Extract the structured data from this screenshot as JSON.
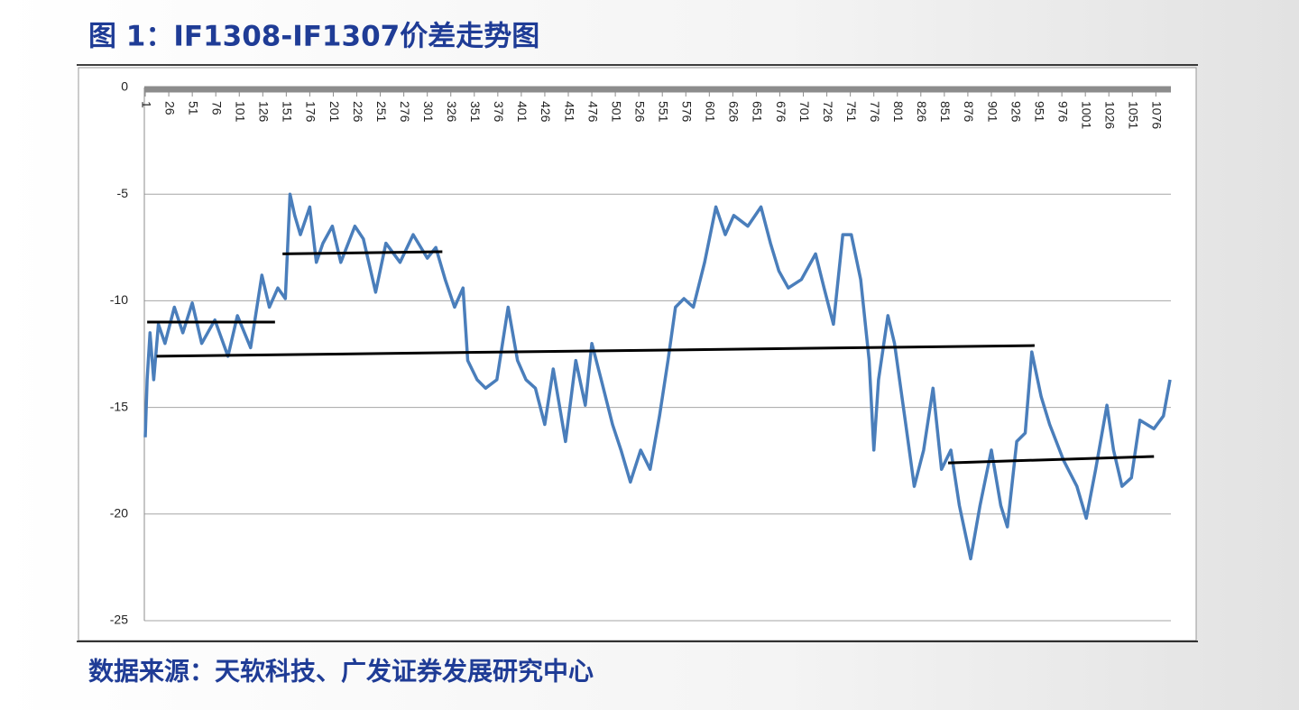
{
  "chart_data": {
    "type": "line",
    "title": "图 1：IF1308-IF1307价差走势图",
    "source": "数据来源：天软科技、广发证券发展研究中心",
    "xlim": [
      0,
      1092
    ],
    "xticks": [
      1,
      26,
      51,
      76,
      101,
      126,
      151,
      176,
      201,
      226,
      251,
      276,
      301,
      326,
      351,
      376,
      401,
      426,
      451,
      476,
      501,
      526,
      551,
      576,
      601,
      626,
      651,
      676,
      701,
      726,
      751,
      776,
      801,
      826,
      851,
      876,
      901,
      926,
      951,
      976,
      1001,
      1026,
      1051,
      1076
    ],
    "ylim": [
      -25,
      0
    ],
    "yticks": [
      0,
      -5,
      -10,
      -15,
      -20,
      -25
    ],
    "grid": true,
    "series": [
      {
        "color": "#4a7ebb",
        "x": [
          1,
          3,
          6,
          10,
          15,
          22,
          32,
          41,
          51,
          61,
          75,
          89,
          99,
          113,
          125,
          133,
          142,
          150,
          155,
          160,
          166,
          176,
          183,
          190,
          200,
          209,
          224,
          233,
          246,
          257,
          272,
          286,
          301,
          310,
          320,
          330,
          339,
          344,
          354,
          363,
          375,
          387,
          397,
          406,
          416,
          426,
          435,
          448,
          459,
          469,
          476,
          486,
          498,
          507,
          517,
          528,
          538,
          548,
          557,
          565,
          574,
          584,
          596,
          608,
          618,
          627,
          642,
          656,
          666,
          675,
          685,
          699,
          714,
          723,
          733,
          743,
          752,
          762,
          771,
          776,
          781,
          791,
          798,
          810,
          819,
          829,
          839,
          848,
          858,
          867,
          879,
          889,
          901,
          911,
          918,
          928,
          937,
          944,
          954,
          963,
          978,
          992,
          1002,
          1012,
          1024,
          1031,
          1040,
          1050,
          1059,
          1074,
          1084,
          1091
        ],
        "values": [
          -16.4,
          -13.7,
          -11.5,
          -13.7,
          -11.1,
          -12,
          -10.3,
          -11.5,
          -10.1,
          -12,
          -10.9,
          -12.6,
          -10.7,
          -12.2,
          -8.8,
          -10.3,
          -9.4,
          -9.9,
          -5.0,
          -6.0,
          -6.9,
          -5.6,
          -8.2,
          -7.3,
          -6.5,
          -8.2,
          -6.5,
          -7.1,
          -9.6,
          -7.3,
          -8.2,
          -6.9,
          -8.0,
          -7.5,
          -9.0,
          -10.3,
          -9.4,
          -12.8,
          -13.7,
          -14.1,
          -13.7,
          -10.3,
          -12.8,
          -13.7,
          -14.1,
          -15.8,
          -13.2,
          -16.6,
          -12.8,
          -14.9,
          -12.0,
          -13.7,
          -15.8,
          -17.0,
          -18.5,
          -17.0,
          -17.9,
          -15.4,
          -12.8,
          -10.3,
          -9.9,
          -10.3,
          -8.2,
          -5.6,
          -6.9,
          -6.0,
          -6.5,
          -5.6,
          -7.3,
          -8.6,
          -9.4,
          -9.0,
          -7.8,
          -9.4,
          -11.1,
          -6.9,
          -6.9,
          -9.0,
          -12.8,
          -17.0,
          -13.7,
          -10.7,
          -12.0,
          -15.8,
          -18.7,
          -17.0,
          -14.1,
          -17.9,
          -17.0,
          -19.6,
          -22.1,
          -19.6,
          -17.0,
          -19.6,
          -20.6,
          -16.6,
          -16.2,
          -12.4,
          -14.5,
          -15.8,
          -17.5,
          -18.7,
          -20.2,
          -17.9,
          -14.9,
          -17.0,
          -18.7,
          -18.3,
          -15.6,
          -16.0,
          -15.4,
          -13.7
        ]
      }
    ],
    "trend_lines": [
      {
        "x": [
          3,
          139
        ],
        "y": [
          -11.0,
          -11.0
        ]
      },
      {
        "x": [
          147,
          317
        ],
        "y": [
          -7.8,
          -7.7
        ]
      },
      {
        "x": [
          13,
          947
        ],
        "y": [
          -12.6,
          -12.1
        ]
      },
      {
        "x": [
          855,
          1074
        ],
        "y": [
          -17.6,
          -17.3
        ]
      }
    ]
  }
}
